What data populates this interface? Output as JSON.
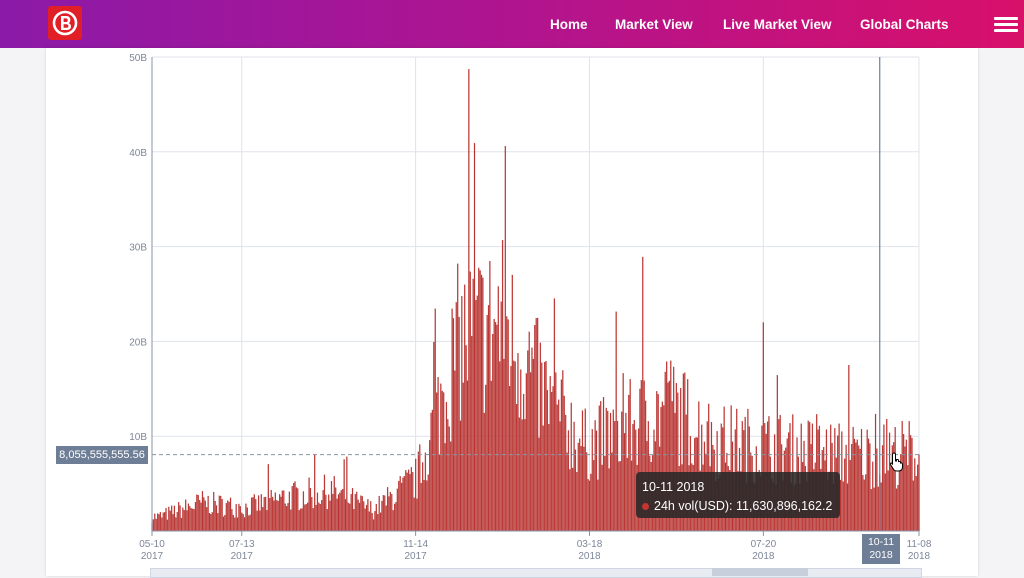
{
  "header": {
    "logo_icon": "bitcoin-b-icon",
    "nav": [
      {
        "label": "Home"
      },
      {
        "label": "Market View"
      },
      {
        "label": "Live Market View"
      },
      {
        "label": "Global Charts"
      }
    ],
    "menu_icon": "hamburger-menu-icon"
  },
  "chart_data": {
    "type": "bar",
    "series": [
      {
        "name": "24h vol(USD)",
        "color": "#c23531"
      }
    ],
    "ylim": [
      0,
      50000000000
    ],
    "y_ticks": [
      "10B",
      "20B",
      "30B",
      "40B",
      "50B"
    ],
    "x_ticks": [
      {
        "date": "05-10",
        "year": "2017"
      },
      {
        "date": "07-13",
        "year": "2017"
      },
      {
        "date": "11-14",
        "year": "2017"
      },
      {
        "date": "03-18",
        "year": "2018"
      },
      {
        "date": "07-20",
        "year": "2018"
      },
      {
        "date": "11-08",
        "year": "2018"
      }
    ],
    "x_range": [
      "2017-05-10",
      "2018-11-08"
    ],
    "monthly_volume_billions": [
      {
        "month": "2017-05",
        "value": 1.5
      },
      {
        "month": "2017-06",
        "value": 3.0
      },
      {
        "month": "2017-07",
        "value": 2.4
      },
      {
        "month": "2017-08",
        "value": 3.6
      },
      {
        "month": "2017-09",
        "value": 4.2
      },
      {
        "month": "2017-10",
        "value": 2.2
      },
      {
        "month": "2017-11",
        "value": 5.5
      },
      {
        "month": "2017-12",
        "value": 20.0
      },
      {
        "month": "2018-01",
        "value": 22.0
      },
      {
        "month": "2018-02",
        "value": 14.0
      },
      {
        "month": "2018-03",
        "value": 9.0
      },
      {
        "month": "2018-04",
        "value": 11.0
      },
      {
        "month": "2018-05",
        "value": 13.0
      },
      {
        "month": "2018-06",
        "value": 9.5
      },
      {
        "month": "2018-07",
        "value": 9.0
      },
      {
        "month": "2018-08",
        "value": 8.5
      },
      {
        "month": "2018-09",
        "value": 8.0
      },
      {
        "month": "2018-10",
        "value": 8.0
      },
      {
        "month": "2018-11",
        "value": 8.5
      }
    ],
    "peaks_billions": [
      {
        "date": "2017-12-22",
        "value": 48.7
      },
      {
        "date": "2018-01-17",
        "value": 40.6
      },
      {
        "date": "2018-04-25",
        "value": 28.9
      },
      {
        "date": "2018-07-20",
        "value": 22.0
      },
      {
        "date": "2018-09-19",
        "value": 17.5
      }
    ],
    "crosshair": {
      "y_value": "8,055,555,555.56",
      "x_date": "10-11",
      "x_year": "2018"
    },
    "tooltip": {
      "date": "10-11 2018",
      "series": "24h vol(USD)",
      "value": "11,630,896,162.2"
    }
  }
}
